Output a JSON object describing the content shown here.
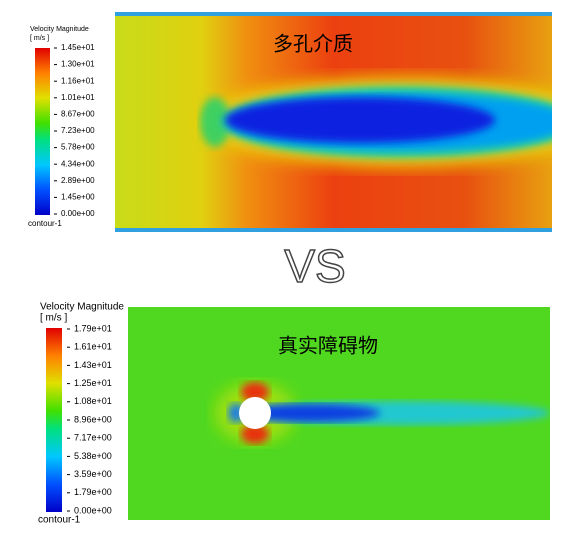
{
  "top_panel": {
    "legend": {
      "title": "Velocity Magnitude",
      "unit": "[ m/s ]",
      "ticks": [
        "1.45e+01",
        "1.30e+01",
        "1.16e+01",
        "1.01e+01",
        "8.67e+00",
        "7.23e+00",
        "5.78e+00",
        "4.34e+00",
        "2.89e+00",
        "1.45e+00",
        "0.00e+00"
      ],
      "footer": "contour-1"
    },
    "label": "多孔介质"
  },
  "separator": "VS",
  "bottom_panel": {
    "legend": {
      "title": "Velocity Magnitude",
      "unit": "[ m/s ]",
      "ticks": [
        "1.79e+01",
        "1.61e+01",
        "1.43e+01",
        "1.25e+01",
        "1.08e+01",
        "8.96e+00",
        "7.17e+00",
        "5.38e+00",
        "3.59e+00",
        "1.79e+00",
        "0.00e+00"
      ],
      "footer": "contour-1"
    },
    "label": "真实障碍物"
  }
}
